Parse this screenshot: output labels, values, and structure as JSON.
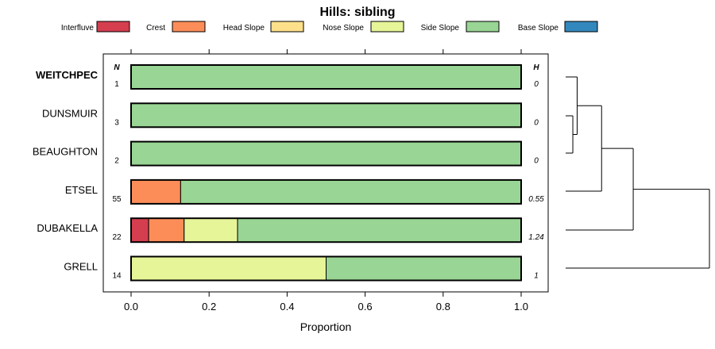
{
  "chart_data": {
    "type": "bar",
    "stacked": true,
    "orientation": "horizontal",
    "title": "Hills: sibling",
    "xlabel": "Proportion",
    "ylabel": "",
    "xlim": [
      0,
      1
    ],
    "xticks": [
      0.0,
      0.2,
      0.4,
      0.6,
      0.8,
      1.0
    ],
    "xtick_labels": [
      "0.0",
      "0.2",
      "0.4",
      "0.6",
      "0.8",
      "1.0"
    ],
    "n_header": "N",
    "h_header": "H",
    "legend": [
      {
        "name": "Interfluve",
        "color": "#d53e4f"
      },
      {
        "name": "Crest",
        "color": "#fc8d59"
      },
      {
        "name": "Head Slope",
        "color": "#fee08b"
      },
      {
        "name": "Nose Slope",
        "color": "#e6f598"
      },
      {
        "name": "Side Slope",
        "color": "#99d594"
      },
      {
        "name": "Base Slope",
        "color": "#3288bd"
      }
    ],
    "categories": [
      "WEITCHPEC",
      "DUNSMUIR",
      "BEAUGHTON",
      "ETSEL",
      "DUBAKELLA",
      "GRELL"
    ],
    "highlight": "WEITCHPEC",
    "n": [
      "1",
      "3",
      "2",
      "55",
      "22",
      "14"
    ],
    "h": [
      "0",
      "0",
      "0",
      "0.55",
      "1.24",
      "1"
    ],
    "rows": [
      {
        "name": "WEITCHPEC",
        "values": [
          0,
          0,
          0,
          0,
          1.0,
          0
        ]
      },
      {
        "name": "DUNSMUIR",
        "values": [
          0,
          0,
          0,
          0,
          1.0,
          0
        ]
      },
      {
        "name": "BEAUGHTON",
        "values": [
          0,
          0,
          0,
          0,
          1.0,
          0
        ]
      },
      {
        "name": "ETSEL",
        "values": [
          0,
          0.127,
          0,
          0,
          0.873,
          0
        ]
      },
      {
        "name": "DUBAKELLA",
        "values": [
          0.045,
          0.091,
          0,
          0.137,
          0.727,
          0
        ]
      },
      {
        "name": "GRELL",
        "values": [
          0,
          0,
          0,
          0.5,
          0.5,
          0
        ]
      }
    ],
    "dendrogram": {
      "merges": [
        {
          "a": "DUNSMUIR",
          "b": "BEAUGHTON",
          "height": 0.05
        },
        {
          "a": "WEITCHPEC",
          "b": "(DUNSMUIR,BEAUGHTON)",
          "height": 0.08
        },
        {
          "a": "(WEITCHPEC,(DUNSMUIR,BEAUGHTON))",
          "b": "ETSEL",
          "height": 0.25
        },
        {
          "a": "(...,ETSEL)",
          "b": "DUBAKELLA",
          "height": 0.47
        },
        {
          "a": "(...,DUBAKELLA)",
          "b": "GRELL",
          "height": 1.0
        }
      ]
    }
  }
}
